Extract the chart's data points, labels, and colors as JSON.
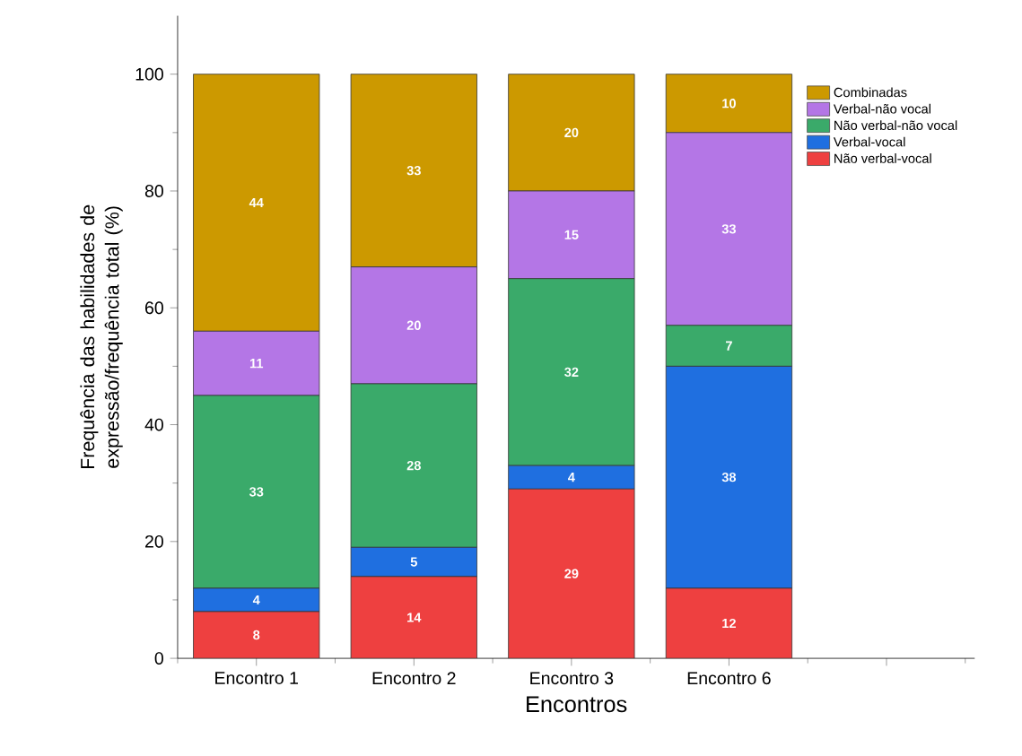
{
  "chart_data": {
    "type": "bar",
    "stacked": true,
    "xlabel": "Encontros",
    "ylabel": "Frequência das habilidades de expressão/frequência total (%)",
    "categories": [
      "Encontro 1",
      "Encontro 2",
      "Encontro 3",
      "Encontro 6",
      null
    ],
    "series": [
      {
        "name": "Não verbal-vocal",
        "color": "#ee4040",
        "values": [
          8,
          14,
          29,
          12,
          null
        ]
      },
      {
        "name": "Verbal-vocal",
        "color": "#1f6fe0",
        "values": [
          4,
          5,
          4,
          38,
          null
        ]
      },
      {
        "name": "Não verbal-não vocal",
        "color": "#3aaa6a",
        "values": [
          33,
          28,
          32,
          7,
          null
        ]
      },
      {
        "name": "Verbal-não vocal",
        "color": "#b476e6",
        "values": [
          11,
          20,
          15,
          33,
          null
        ]
      },
      {
        "name": "Combinadas",
        "color": "#cc9900",
        "values": [
          44,
          33,
          20,
          10,
          null
        ]
      }
    ],
    "ylim": [
      0,
      110
    ],
    "yticks": [
      0,
      20,
      40,
      60,
      80,
      100
    ],
    "data_labels": true,
    "legend": "top right",
    "grid": false
  }
}
